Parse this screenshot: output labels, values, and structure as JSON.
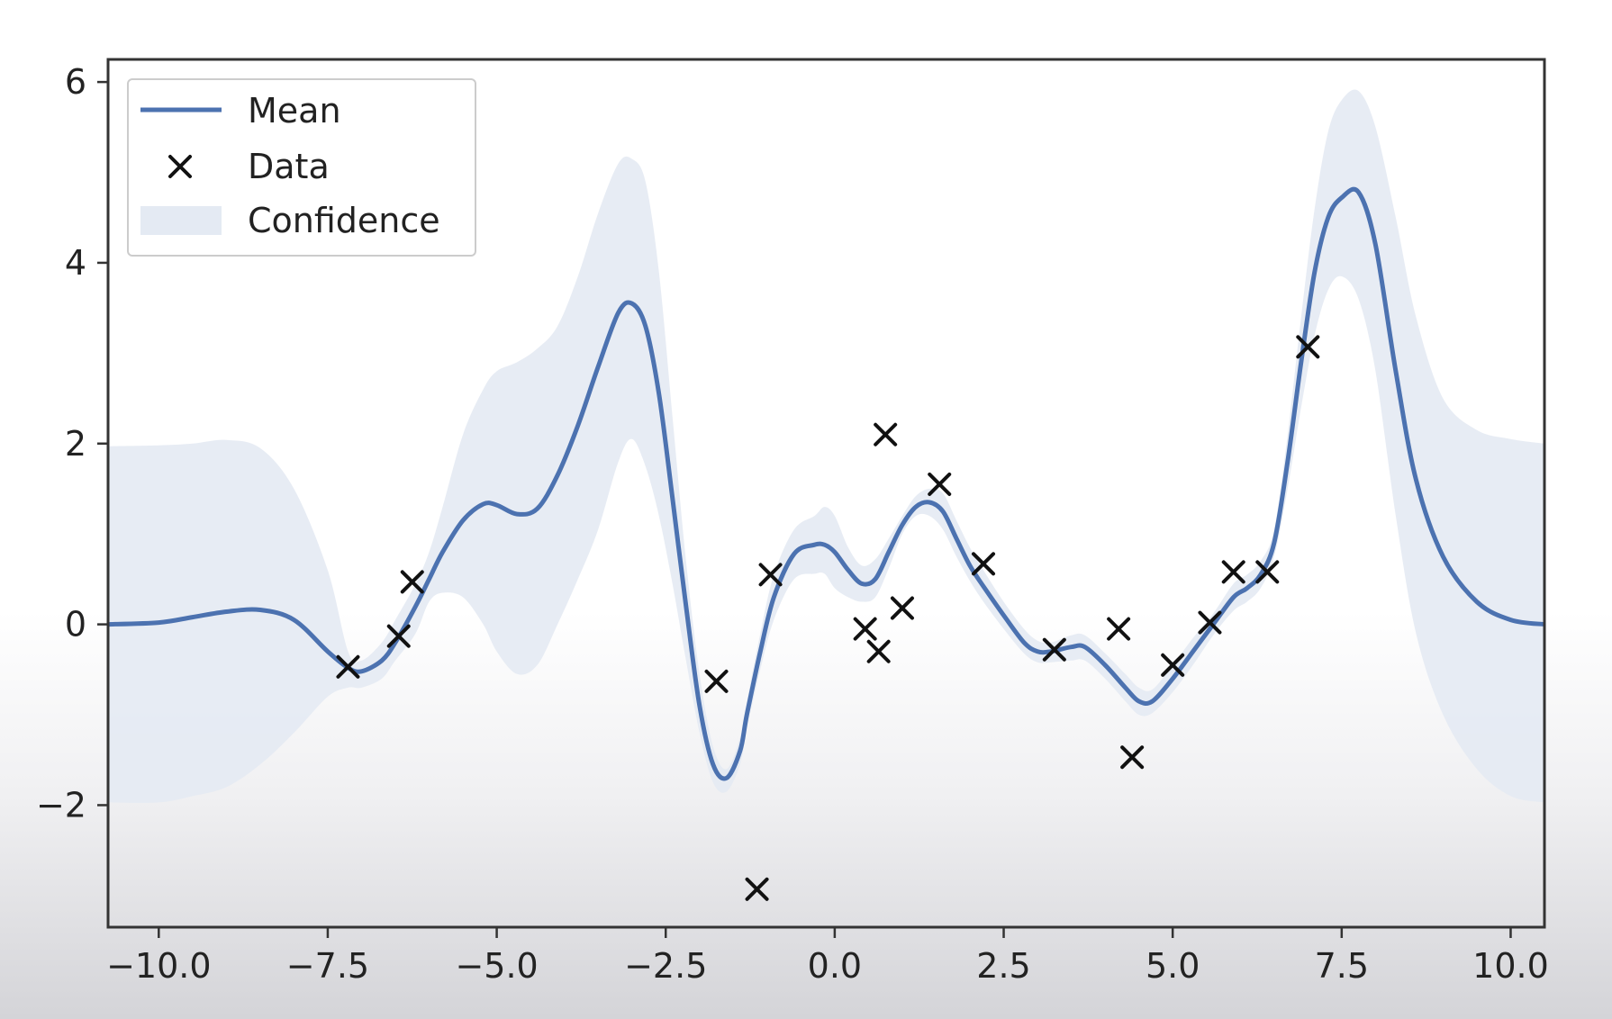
{
  "chart_data": {
    "type": "line",
    "title": "",
    "xlabel": "",
    "ylabel": "",
    "xlim": [
      -10.75,
      10.5
    ],
    "ylim": [
      -3.35,
      6.25
    ],
    "xticks": [
      -10.0,
      -7.5,
      -5.0,
      -2.5,
      0.0,
      2.5,
      5.0,
      7.5,
      10.0
    ],
    "xtick_labels": [
      "−10.0",
      "−7.5",
      "−5.0",
      "−2.5",
      "0.0",
      "2.5",
      "5.0",
      "7.5",
      "10.0"
    ],
    "yticks": [
      -2,
      0,
      2,
      4,
      6
    ],
    "ytick_labels": [
      "−2",
      "0",
      "2",
      "4",
      "6"
    ],
    "grid": false,
    "legend_position": "top-left",
    "legend": [
      {
        "label": "Mean",
        "kind": "line"
      },
      {
        "label": "Data",
        "kind": "marker"
      },
      {
        "label": "Confidence",
        "kind": "band"
      }
    ],
    "colors": {
      "mean": "#4c72b0",
      "band": "#e4eaf3",
      "data": "#111111"
    },
    "series": [
      {
        "name": "Mean",
        "kind": "line",
        "x": [
          -10.75,
          -10,
          -9.5,
          -9,
          -8.5,
          -8,
          -7.5,
          -7.2,
          -7,
          -6.7,
          -6.5,
          -6.2,
          -6,
          -5.8,
          -5.5,
          -5.2,
          -5,
          -4.7,
          -4.4,
          -4.1,
          -3.8,
          -3.5,
          -3.2,
          -3,
          -2.8,
          -2.6,
          -2.4,
          -2.2,
          -2,
          -1.8,
          -1.6,
          -1.4,
          -1.3,
          -1.1,
          -0.9,
          -0.6,
          -0.3,
          -0.15,
          0,
          0.2,
          0.4,
          0.6,
          0.8,
          1.0,
          1.2,
          1.4,
          1.6,
          1.8,
          2.0,
          2.2,
          2.5,
          2.8,
          3.0,
          3.2,
          3.5,
          3.7,
          4.0,
          4.3,
          4.5,
          4.7,
          5.0,
          5.3,
          5.6,
          5.9,
          6.1,
          6.3,
          6.5,
          6.7,
          6.9,
          7.1,
          7.3,
          7.5,
          7.75,
          8.0,
          8.3,
          8.6,
          9.0,
          9.5,
          10.0,
          10.5
        ],
        "y": [
          0.0,
          0.02,
          0.08,
          0.14,
          0.16,
          0.05,
          -0.3,
          -0.48,
          -0.52,
          -0.4,
          -0.2,
          0.2,
          0.5,
          0.8,
          1.15,
          1.33,
          1.32,
          1.22,
          1.28,
          1.65,
          2.2,
          2.85,
          3.45,
          3.55,
          3.3,
          2.55,
          1.4,
          0.2,
          -0.9,
          -1.55,
          -1.7,
          -1.4,
          -1.0,
          -0.3,
          0.3,
          0.78,
          0.88,
          0.88,
          0.8,
          0.6,
          0.45,
          0.5,
          0.8,
          1.1,
          1.3,
          1.35,
          1.25,
          0.95,
          0.65,
          0.42,
          0.1,
          -0.2,
          -0.3,
          -0.3,
          -0.25,
          -0.25,
          -0.45,
          -0.7,
          -0.85,
          -0.85,
          -0.6,
          -0.3,
          0.0,
          0.3,
          0.4,
          0.55,
          0.9,
          1.8,
          2.9,
          3.9,
          4.5,
          4.72,
          4.78,
          4.2,
          2.8,
          1.6,
          0.75,
          0.25,
          0.05,
          0.0
        ]
      },
      {
        "name": "Confidence",
        "kind": "band",
        "x": [
          -10.75,
          -10,
          -9.5,
          -9,
          -8.5,
          -8,
          -7.5,
          -7.2,
          -7,
          -6.7,
          -6.5,
          -6.2,
          -6,
          -5.8,
          -5.5,
          -5.2,
          -5,
          -4.7,
          -4.4,
          -4.1,
          -3.8,
          -3.5,
          -3.2,
          -3,
          -2.8,
          -2.6,
          -2.4,
          -2.2,
          -2,
          -1.8,
          -1.6,
          -1.4,
          -1.3,
          -1.1,
          -0.9,
          -0.6,
          -0.3,
          -0.15,
          0,
          0.2,
          0.4,
          0.6,
          0.8,
          1.0,
          1.2,
          1.4,
          1.6,
          1.8,
          2.0,
          2.2,
          2.5,
          2.8,
          3.0,
          3.2,
          3.5,
          3.7,
          4.0,
          4.3,
          4.5,
          4.7,
          5.0,
          5.3,
          5.6,
          5.9,
          6.1,
          6.3,
          6.5,
          6.7,
          6.9,
          7.1,
          7.3,
          7.5,
          7.75,
          8.0,
          8.3,
          8.6,
          9.0,
          9.5,
          10.0,
          10.5
        ],
        "upper": [
          1.97,
          1.98,
          2.0,
          2.04,
          1.95,
          1.5,
          0.6,
          -0.3,
          -0.4,
          -0.2,
          0.05,
          0.45,
          0.8,
          1.3,
          2.1,
          2.6,
          2.8,
          2.9,
          3.05,
          3.3,
          3.85,
          4.55,
          5.1,
          5.15,
          4.9,
          3.9,
          2.3,
          0.7,
          -0.55,
          -1.35,
          -1.6,
          -1.25,
          -0.85,
          -0.1,
          0.55,
          1.05,
          1.2,
          1.3,
          1.2,
          0.85,
          0.65,
          0.72,
          0.95,
          1.2,
          1.42,
          1.5,
          1.45,
          1.15,
          0.85,
          0.6,
          0.25,
          -0.05,
          -0.18,
          -0.2,
          -0.12,
          -0.12,
          -0.32,
          -0.55,
          -0.7,
          -0.72,
          -0.45,
          -0.15,
          0.12,
          0.45,
          0.55,
          0.7,
          1.05,
          2.1,
          3.4,
          4.6,
          5.45,
          5.8,
          5.9,
          5.5,
          4.5,
          3.4,
          2.5,
          2.15,
          2.05,
          2.0
        ],
        "lower": [
          -1.97,
          -1.97,
          -1.9,
          -1.8,
          -1.55,
          -1.2,
          -0.8,
          -0.7,
          -0.7,
          -0.6,
          -0.4,
          -0.1,
          0.25,
          0.35,
          0.3,
          0.0,
          -0.3,
          -0.55,
          -0.45,
          0.0,
          0.5,
          1.05,
          1.8,
          2.05,
          1.75,
          1.2,
          0.45,
          -0.4,
          -1.2,
          -1.75,
          -1.85,
          -1.55,
          -1.15,
          -0.5,
          0.05,
          0.5,
          0.56,
          0.56,
          0.4,
          0.3,
          0.25,
          0.3,
          0.62,
          1.0,
          1.2,
          1.2,
          1.05,
          0.75,
          0.48,
          0.25,
          -0.05,
          -0.32,
          -0.42,
          -0.42,
          -0.4,
          -0.4,
          -0.6,
          -0.85,
          -1.0,
          -0.98,
          -0.75,
          -0.45,
          -0.12,
          0.15,
          0.25,
          0.4,
          0.75,
          1.5,
          2.4,
          3.2,
          3.7,
          3.85,
          3.6,
          2.8,
          1.2,
          -0.1,
          -1.0,
          -1.6,
          -1.9,
          -1.97
        ]
      },
      {
        "name": "Data",
        "kind": "scatter",
        "points": [
          [
            -7.2,
            -0.47
          ],
          [
            -6.45,
            -0.13
          ],
          [
            -6.25,
            0.47
          ],
          [
            -1.75,
            -0.63
          ],
          [
            -0.95,
            0.55
          ],
          [
            -1.15,
            -2.93
          ],
          [
            0.45,
            -0.05
          ],
          [
            0.65,
            -0.3
          ],
          [
            0.75,
            2.1
          ],
          [
            1.0,
            0.18
          ],
          [
            1.55,
            1.55
          ],
          [
            2.2,
            0.67
          ],
          [
            3.25,
            -0.28
          ],
          [
            4.2,
            -0.05
          ],
          [
            4.4,
            -1.47
          ],
          [
            5.0,
            -0.45
          ],
          [
            5.55,
            0.02
          ],
          [
            5.9,
            0.58
          ],
          [
            6.4,
            0.58
          ],
          [
            7.0,
            3.07
          ]
        ]
      }
    ]
  }
}
